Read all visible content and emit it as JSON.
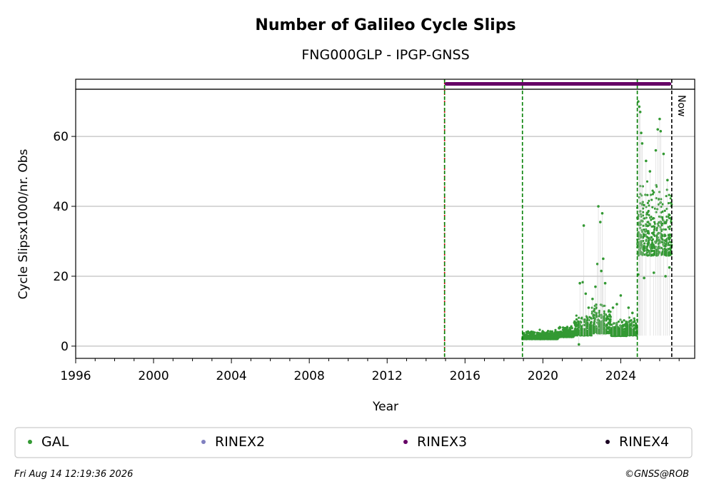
{
  "chart_data": {
    "type": "scatter",
    "title": "Number of Galileo Cycle Slips",
    "subtitle": "FNG000GLP - IPGP-GNSS",
    "xlabel": "Year",
    "ylabel": "Cycle Slipsx1000/nr. Obs",
    "xlim": [
      1996,
      2027.8
    ],
    "ylim": [
      -3.5,
      73.5
    ],
    "xticks": [
      1996,
      2000,
      2004,
      2008,
      2012,
      2016,
      2020,
      2024
    ],
    "xtick_labels": [
      "1996",
      "2000",
      "2004",
      "2008",
      "2012",
      "2016",
      "2020",
      "2024"
    ],
    "yticks": [
      0,
      20,
      40,
      60
    ],
    "ytick_labels": [
      "0",
      "20",
      "40",
      "60"
    ],
    "grid": "horizontal",
    "now_label": "Now",
    "now_x": 2026.62,
    "vlines": [
      {
        "x": 2014.95,
        "color": "#cc0000",
        "style": "dotted"
      },
      {
        "x": 2014.95,
        "color": "#008000",
        "style": "dashed"
      },
      {
        "x": 2018.95,
        "color": "#008000",
        "style": "dashed"
      },
      {
        "x": 2024.85,
        "color": "#008000",
        "style": "dashed"
      },
      {
        "x": 2026.62,
        "color": "#000000",
        "style": "dashed"
      }
    ],
    "rinex_strip": {
      "series": "RINEX3",
      "start": 2014.95,
      "end": 2026.6,
      "color": "#660066"
    },
    "series": [
      {
        "name": "GAL",
        "color": "#339933",
        "segments": [
          {
            "start": 2018.95,
            "end": 2020.8,
            "low": 1.5,
            "high": 4.8
          },
          {
            "start": 2020.8,
            "end": 2021.6,
            "low": 2.0,
            "high": 6.0
          },
          {
            "start": 2021.6,
            "end": 2022.5,
            "low": 2.0,
            "high": 9.0
          },
          {
            "start": 2022.5,
            "end": 2023.5,
            "low": 2.0,
            "high": 13.0
          },
          {
            "start": 2023.5,
            "end": 2024.3,
            "low": 2.0,
            "high": 8.0
          },
          {
            "start": 2024.3,
            "end": 2024.85,
            "low": 2.0,
            "high": 9.0
          },
          {
            "start": 2024.85,
            "end": 2026.62,
            "low": 22.0,
            "high": 48.0
          }
        ],
        "outliers": [
          [
            2021.9,
            18.0
          ],
          [
            2022.05,
            18.3
          ],
          [
            2022.1,
            34.5
          ],
          [
            2022.2,
            15.0
          ],
          [
            2022.35,
            11.0
          ],
          [
            2022.55,
            13.5
          ],
          [
            2022.7,
            17.0
          ],
          [
            2022.8,
            23.5
          ],
          [
            2022.85,
            40.0
          ],
          [
            2022.95,
            35.5
          ],
          [
            2023.05,
            38.0
          ],
          [
            2023.1,
            25.0
          ],
          [
            2023.0,
            21.5
          ],
          [
            2023.2,
            18.0
          ],
          [
            2023.6,
            11.0
          ],
          [
            2023.8,
            12.0
          ],
          [
            2024.0,
            14.5
          ],
          [
            2024.4,
            11.0
          ],
          [
            2024.6,
            9.5
          ],
          [
            2021.85,
            0.5
          ],
          [
            2024.9,
            70.0
          ],
          [
            2024.95,
            68.5
          ],
          [
            2025.0,
            67.0
          ],
          [
            2025.05,
            61.0
          ],
          [
            2025.1,
            58.0
          ],
          [
            2025.3,
            53.0
          ],
          [
            2025.5,
            50.0
          ],
          [
            2025.8,
            56.0
          ],
          [
            2025.9,
            62.0
          ],
          [
            2026.0,
            65.0
          ],
          [
            2026.05,
            61.5
          ],
          [
            2026.2,
            55.0
          ],
          [
            2026.4,
            47.5
          ],
          [
            2024.9,
            20.5
          ],
          [
            2025.2,
            19.5
          ],
          [
            2025.7,
            21.0
          ],
          [
            2026.3,
            20.0
          ],
          [
            2026.5,
            22.5
          ]
        ]
      },
      {
        "name": "RINEX2",
        "color": "#8080c0"
      },
      {
        "name": "RINEX3",
        "color": "#660066"
      },
      {
        "name": "RINEX4",
        "color": "#1a0022"
      }
    ],
    "legend": {
      "placement": "bottom",
      "columns": 4
    }
  },
  "footer": {
    "timestamp": "Fri Aug 14 12:19:36 2026",
    "credit": "©GNSS@ROB"
  }
}
